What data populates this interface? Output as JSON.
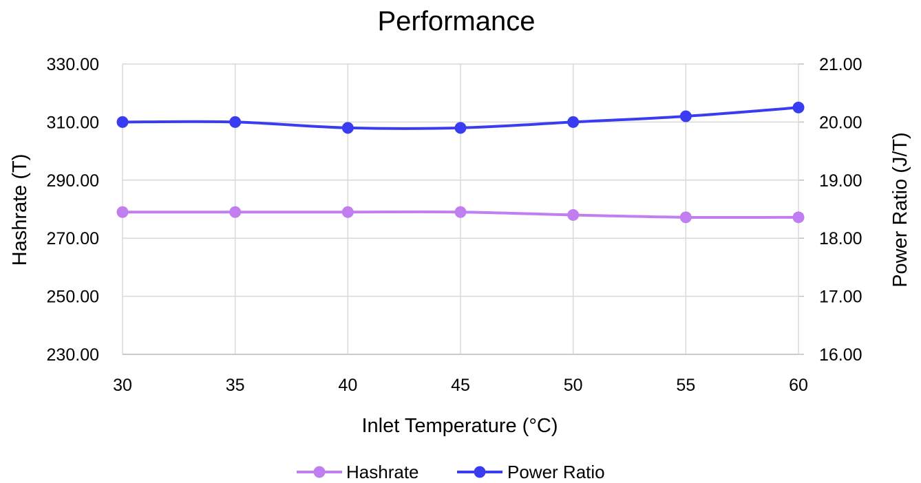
{
  "chart_data": {
    "type": "line",
    "title": "Performance",
    "xlabel": "Inlet Temperature (°C)",
    "ylabel": "Hashrate (T)",
    "y2label": "Power Ratio (J/T)",
    "x": [
      30,
      35,
      40,
      45,
      50,
      55,
      60
    ],
    "xlim": [
      30,
      60
    ],
    "ylim": [
      230,
      330
    ],
    "y2lim": [
      16,
      21
    ],
    "y_ticks": [
      "230.00",
      "250.00",
      "270.00",
      "290.00",
      "310.00",
      "330.00"
    ],
    "y2_ticks": [
      "16.00",
      "17.00",
      "18.00",
      "19.00",
      "20.00",
      "21.00"
    ],
    "x_ticks": [
      "30",
      "35",
      "40",
      "45",
      "50",
      "55",
      "60"
    ],
    "grid": true,
    "legend_position": "bottom",
    "series": [
      {
        "name": "Hashrate",
        "axis": "left",
        "color": "#c07ef0",
        "values": [
          279,
          279,
          279,
          279,
          278,
          277.2,
          277.2
        ]
      },
      {
        "name": "Power Ratio",
        "axis": "right",
        "color": "#3a3cf2",
        "values": [
          20.0,
          20.0,
          19.9,
          19.9,
          20.0,
          20.1,
          20.25
        ]
      }
    ]
  }
}
